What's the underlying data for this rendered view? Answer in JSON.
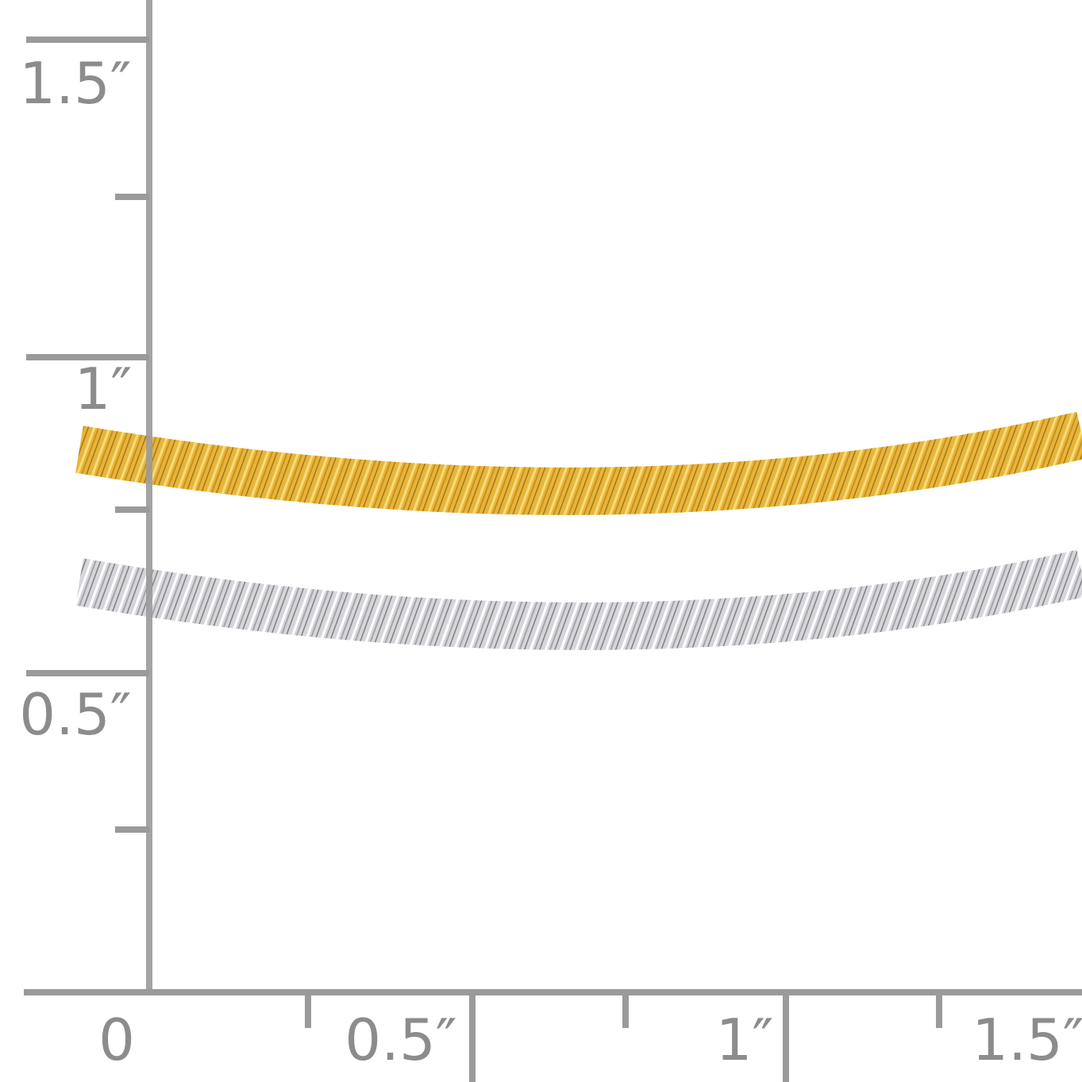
{
  "ruler": {
    "y_labels": [
      "1.5″",
      "1″",
      "0.5″"
    ],
    "x_labels": [
      "0",
      "0.5″",
      "1″",
      "1.5″"
    ]
  }
}
